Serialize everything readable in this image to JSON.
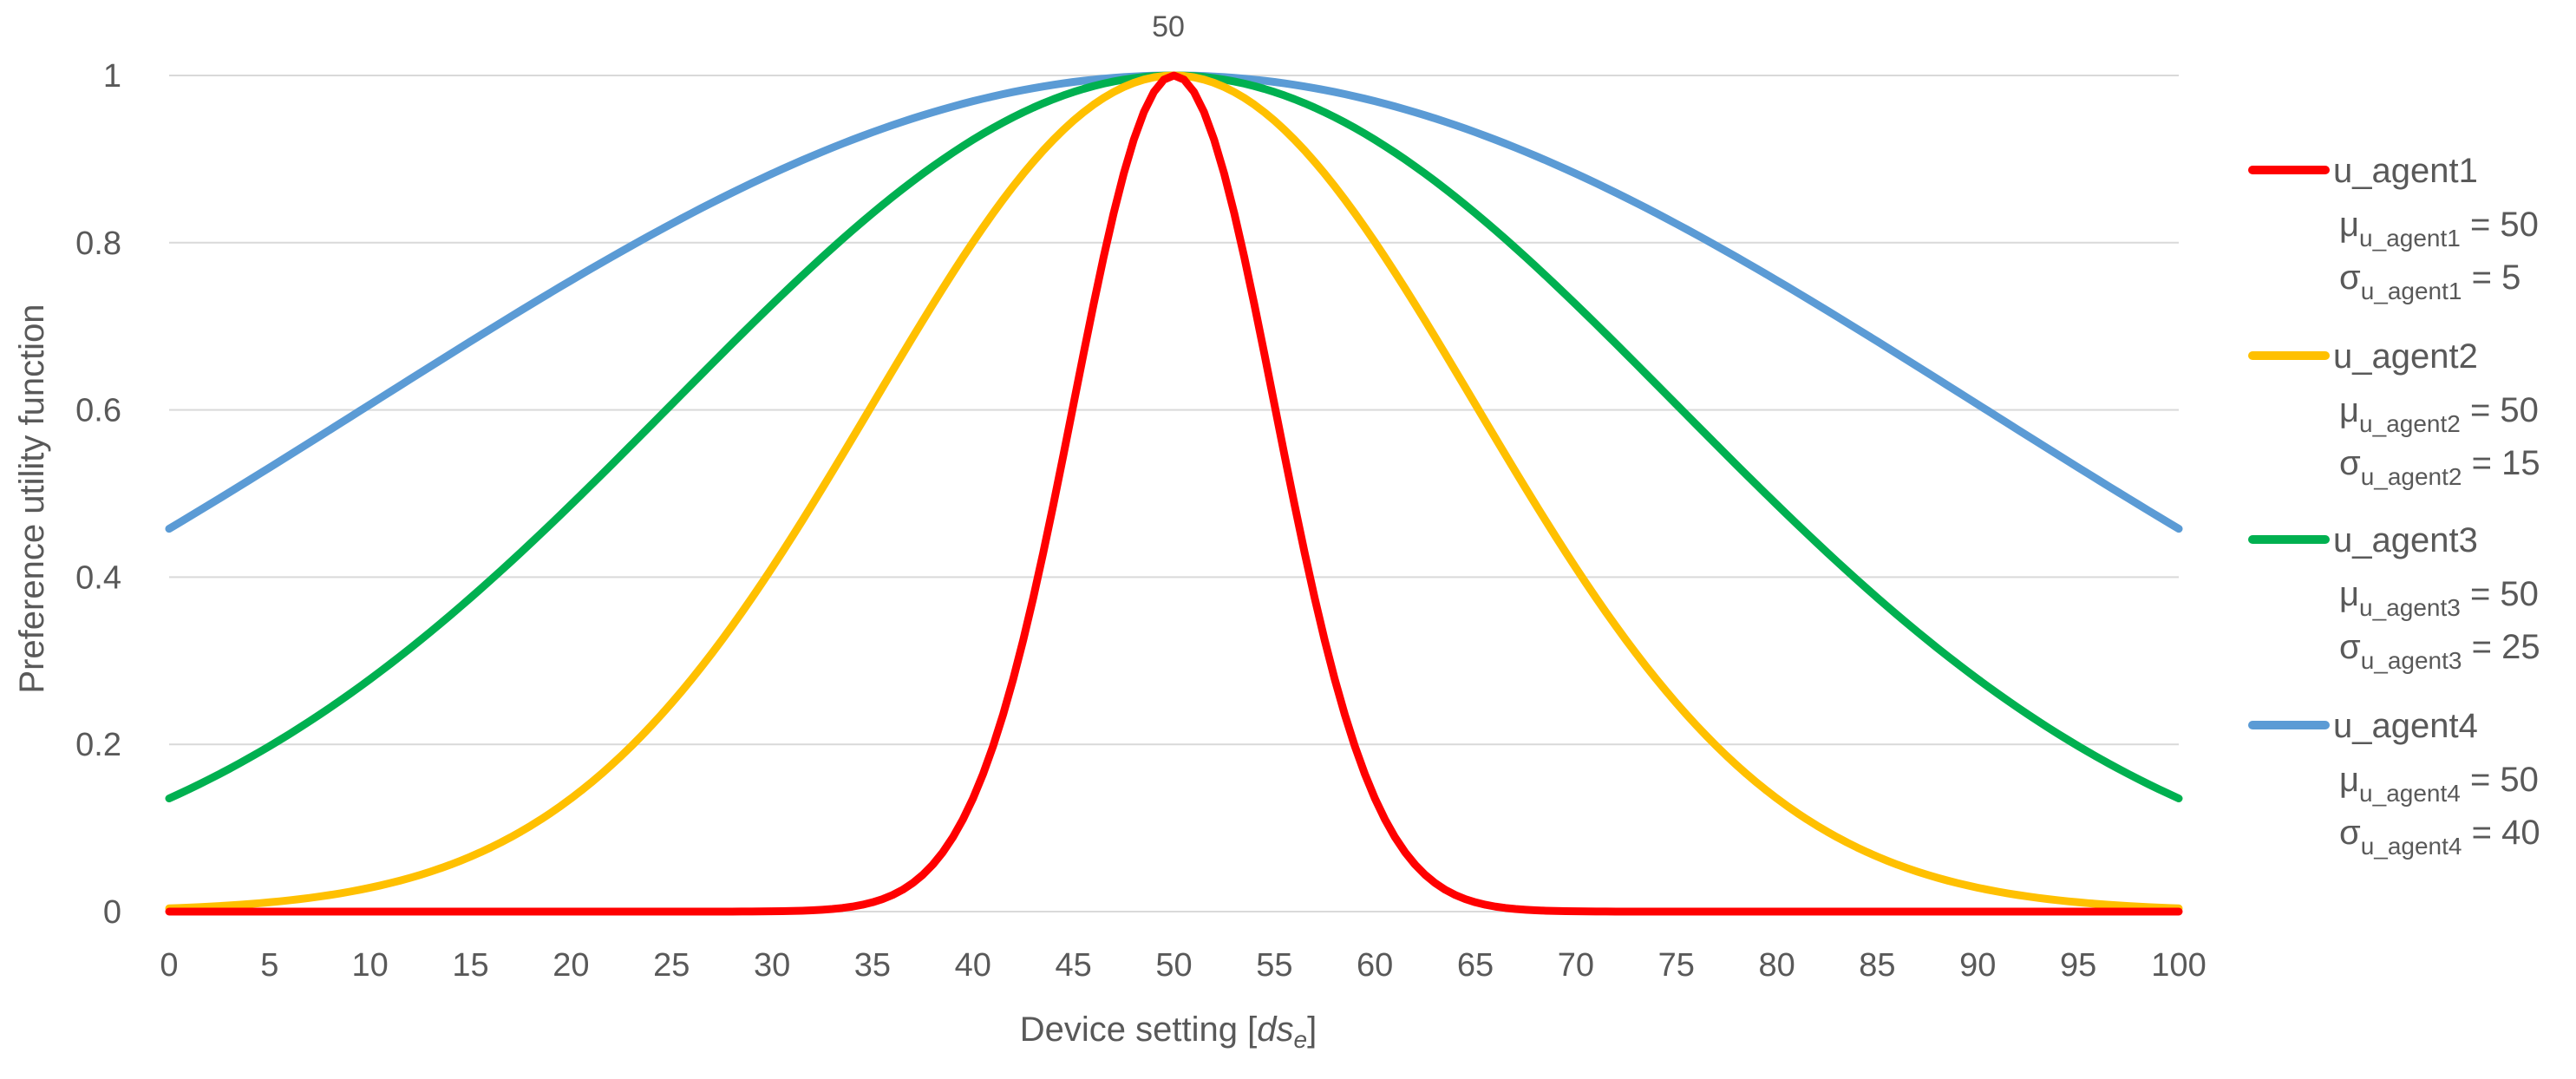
{
  "chart_data": {
    "type": "line",
    "title": "",
    "xlabel_main": "Device setting [",
    "xlabel_var": "ds",
    "xlabel_sub": "e",
    "xlabel_end": "]",
    "ylabel": "Preference utility function",
    "xlim": [
      0,
      100
    ],
    "ylim": [
      0,
      1
    ],
    "x_ticks": [
      "0",
      "5",
      "10",
      "15",
      "20",
      "25",
      "30",
      "35",
      "40",
      "45",
      "50",
      "55",
      "60",
      "65",
      "70",
      "75",
      "80",
      "85",
      "90",
      "95",
      "100"
    ],
    "y_ticks": [
      "0",
      "0.2",
      "0.4",
      "0.6",
      "0.8",
      "1"
    ],
    "grid": "horizontal",
    "annotation": "50",
    "legend_position": "right",
    "series": [
      {
        "name": "u_agent1",
        "color": "#ff0000",
        "mu": 50,
        "sigma": 5,
        "mu_label": "μ",
        "mu_sub": "u_agent1",
        "mu_text": " = 50",
        "sigma_label": "σ",
        "sigma_sub": "u_agent1",
        "sigma_text": "  = 5"
      },
      {
        "name": "u_agent2",
        "color": "#ffc000",
        "mu": 50,
        "sigma": 15,
        "mu_label": "μ",
        "mu_sub": "u_agent2",
        "mu_text": "  = 50",
        "sigma_label": "σ",
        "sigma_sub": "u_agent2",
        "sigma_text": "  = 15"
      },
      {
        "name": "u_agent3",
        "color": "#00b050",
        "mu": 50,
        "sigma": 25,
        "mu_label": "μ",
        "mu_sub": "u_agent3",
        "mu_text": "  = 50",
        "sigma_label": "σ",
        "sigma_sub": "u_agent3",
        "sigma_text": "  = 25"
      },
      {
        "name": "u_agent4",
        "color": "#5b9bd5",
        "mu": 50,
        "sigma": 40,
        "mu_label": "μ",
        "mu_sub": "u_agent4",
        "mu_text": "  = 50",
        "sigma_label": "σ",
        "sigma_sub": "u_agent4",
        "sigma_text": "  = 40"
      }
    ]
  }
}
